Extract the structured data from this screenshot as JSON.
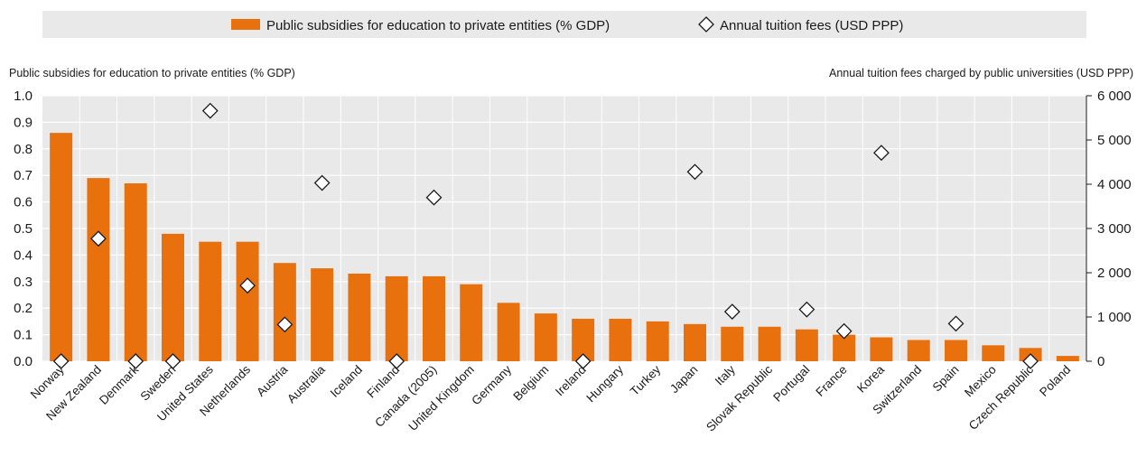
{
  "chart_data": {
    "type": "bar",
    "legend": {
      "placement": "top",
      "items": [
        {
          "label": "Public subsidies for education to private entities (% GDP)",
          "marker": "bar"
        },
        {
          "label": "Annual tuition fees (USD PPP)",
          "marker": "diamond"
        }
      ]
    },
    "left_axis": {
      "title": "Public subsidies for education to private entities (% GDP)",
      "range": [
        0,
        1.0
      ],
      "ticks": [
        "0.0",
        "0.1",
        "0.2",
        "0.3",
        "0.4",
        "0.5",
        "0.6",
        "0.7",
        "0.8",
        "0.9",
        "1.0"
      ]
    },
    "right_axis": {
      "title": "Annual tuition fees charged by public universities (USD PPP)",
      "range": [
        0,
        6000
      ],
      "ticks": [
        "0",
        "1 000",
        "2 000",
        "3 000",
        "4 000",
        "5 000",
        "6 000"
      ]
    },
    "categories": [
      "Norway",
      "New Zealand",
      "Denmark",
      "Sweden",
      "United States",
      "Netherlands",
      "Austria",
      "Australia",
      "Iceland",
      "Finland",
      "Canada (2005)",
      "United Kingdom",
      "Germany",
      "Belgium",
      "Ireland",
      "Hungary",
      "Turkey",
      "Japan",
      "Italy",
      "Slovak Republic",
      "Portugal",
      "France",
      "Korea",
      "Switzerland",
      "Spain",
      "Mexico",
      "Czech Republic",
      "Poland"
    ],
    "series": [
      {
        "name": "Public subsidies for education to private entities (% GDP)",
        "axis": "left",
        "color": "#e8710e",
        "values": [
          0.86,
          0.69,
          0.67,
          0.48,
          0.45,
          0.45,
          0.37,
          0.35,
          0.33,
          0.32,
          0.32,
          0.29,
          0.22,
          0.18,
          0.16,
          0.16,
          0.15,
          0.14,
          0.13,
          0.13,
          0.12,
          0.1,
          0.09,
          0.08,
          0.08,
          0.06,
          0.05,
          0.02
        ]
      },
      {
        "name": "Annual tuition fees (USD PPP)",
        "axis": "right",
        "color": "#1a1a1a",
        "values": [
          0,
          2770,
          0,
          0,
          5660,
          1710,
          830,
          4030,
          null,
          0,
          3700,
          null,
          null,
          null,
          0,
          null,
          null,
          4280,
          1120,
          null,
          1170,
          680,
          4710,
          null,
          850,
          null,
          0,
          null
        ]
      }
    ],
    "grid": true
  }
}
